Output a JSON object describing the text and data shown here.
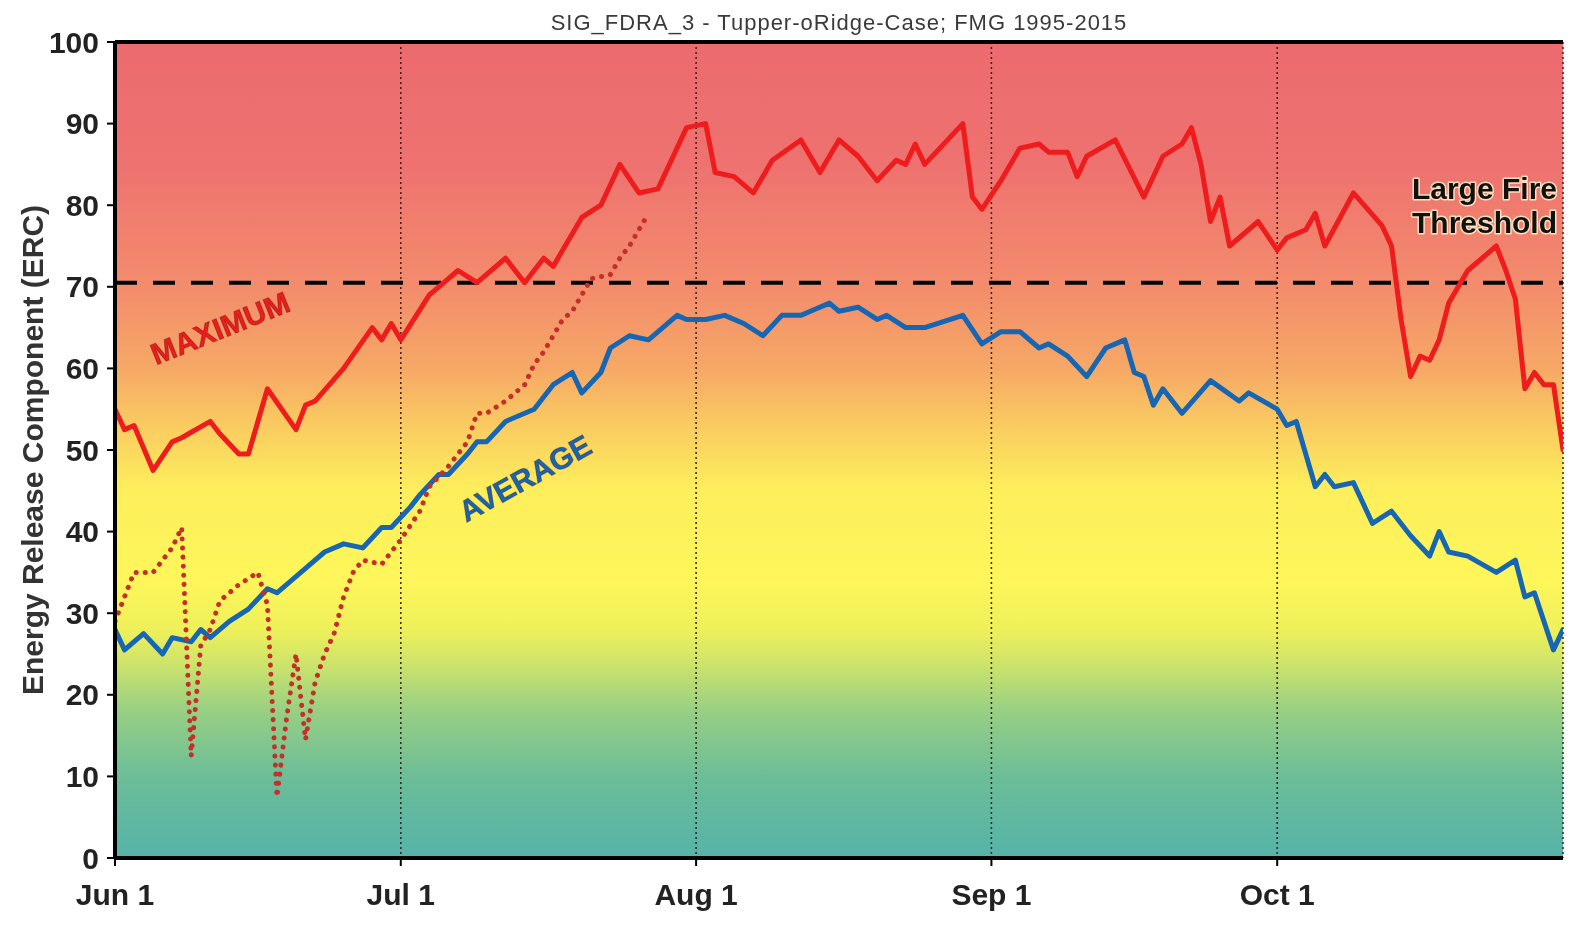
{
  "chart_data": {
    "type": "line",
    "title": "SIG_FDRA_3 - Tupper-oRidge-Case; FMG 1995-2015",
    "ylabel": "Energy Release Component (ERC)",
    "xlim": [
      "--06-01",
      "--10-31"
    ],
    "xticks": [
      {
        "value": "--06-01",
        "label": "Jun 1"
      },
      {
        "value": "--07-01",
        "label": "Jul 1"
      },
      {
        "value": "--08-01",
        "label": "Aug 1"
      },
      {
        "value": "--09-01",
        "label": "Sep 1"
      },
      {
        "value": "--10-01",
        "label": "Oct 1"
      }
    ],
    "ylim": [
      0,
      100
    ],
    "yticks": [
      0,
      10,
      20,
      30,
      40,
      50,
      60,
      70,
      80,
      90,
      100
    ],
    "grid": "x",
    "ref_lines": [
      {
        "axis": "y",
        "value": 70.5,
        "label": "Large Fire Threshold",
        "color": "#000000",
        "line_style": "dashed"
      }
    ],
    "series": [
      {
        "name": "MAXIMUM",
        "color": "#ee1c1c",
        "x": [
          "--06-01",
          "--06-02",
          "--06-03",
          "--06-05",
          "--06-07",
          "--06-08",
          "--06-11",
          "--06-12",
          "--06-14",
          "--06-15",
          "--06-17",
          "--06-20",
          "--06-21",
          "--06-22",
          "--06-25",
          "--06-28",
          "--06-29",
          "--06-30",
          "--07-01",
          "--07-04",
          "--07-05",
          "--07-07",
          "--07-09",
          "--07-12",
          "--07-14",
          "--07-16",
          "--07-17",
          "--07-20",
          "--07-22",
          "--07-24",
          "--07-26",
          "--07-28",
          "--07-30",
          "--07-31",
          "--08-02",
          "--08-03",
          "--08-05",
          "--08-07",
          "--08-09",
          "--08-12",
          "--08-14",
          "--08-16",
          "--08-18",
          "--08-20",
          "--08-22",
          "--08-23",
          "--08-24",
          "--08-25",
          "--08-29",
          "--08-30",
          "--08-31",
          "--09-02",
          "--09-04",
          "--09-06",
          "--09-07",
          "--09-09",
          "--09-10",
          "--09-11",
          "--09-14",
          "--09-17",
          "--09-19",
          "--09-21",
          "--09-22",
          "--09-23",
          "--09-24",
          "--09-25",
          "--09-26",
          "--09-29",
          "--10-01",
          "--10-02",
          "--10-04",
          "--10-05",
          "--10-06",
          "--10-09",
          "--10-12",
          "--10-13",
          "--10-14",
          "--10-15",
          "--10-16",
          "--10-17",
          "--10-18",
          "--10-19",
          "--10-21",
          "--10-24",
          "--10-25",
          "--10-26",
          "--10-27",
          "--10-28",
          "--10-29",
          "--10-30",
          "--10-31"
        ],
        "values": [
          55,
          52.5,
          53,
          47.5,
          51,
          51.5,
          53.5,
          52,
          49.5,
          49.5,
          57.5,
          52.5,
          55.5,
          56,
          60,
          65,
          63.5,
          65.5,
          63.5,
          69,
          70,
          72,
          70.5,
          73.5,
          70.5,
          73.5,
          72.5,
          78.5,
          80,
          85,
          81.5,
          82,
          87,
          89.5,
          90,
          84,
          83.5,
          81.5,
          85.5,
          88,
          84,
          88,
          86,
          83,
          85.5,
          85,
          87.5,
          85,
          90,
          81,
          79.5,
          83,
          87,
          87.5,
          86.5,
          86.5,
          83.5,
          86,
          88,
          81,
          86,
          87.5,
          89.5,
          85,
          78,
          81,
          75,
          78,
          74.5,
          76,
          77,
          79,
          75,
          81.5,
          77.5,
          75,
          66,
          59,
          61.5,
          61,
          63.5,
          68,
          72,
          75,
          72,
          68.5,
          57.5,
          59.5,
          58,
          58,
          50
        ]
      },
      {
        "name": "AVERAGE",
        "color": "#1666b4",
        "x": [
          "--06-01",
          "--06-02",
          "--06-04",
          "--06-06",
          "--06-07",
          "--06-09",
          "--06-10",
          "--06-11",
          "--06-13",
          "--06-15",
          "--06-17",
          "--06-18",
          "--06-21",
          "--06-23",
          "--06-25",
          "--06-27",
          "--06-29",
          "--06-30",
          "--07-02",
          "--07-03",
          "--07-05",
          "--07-06",
          "--07-08",
          "--07-09",
          "--07-10",
          "--07-12",
          "--07-14",
          "--07-15",
          "--07-17",
          "--07-19",
          "--07-20",
          "--07-22",
          "--07-23",
          "--07-25",
          "--07-27",
          "--07-30",
          "--07-31",
          "--08-02",
          "--08-04",
          "--08-06",
          "--08-08",
          "--08-10",
          "--08-11",
          "--08-12",
          "--08-13",
          "--08-15",
          "--08-16",
          "--08-18",
          "--08-20",
          "--08-21",
          "--08-23",
          "--08-25",
          "--08-29",
          "--08-31",
          "--09-02",
          "--09-04",
          "--09-06",
          "--09-07",
          "--09-09",
          "--09-11",
          "--09-13",
          "--09-15",
          "--09-16",
          "--09-17",
          "--09-18",
          "--09-19",
          "--09-21",
          "--09-24",
          "--09-27",
          "--09-28",
          "--10-01",
          "--10-02",
          "--10-03",
          "--10-05",
          "--10-06",
          "--10-07",
          "--10-09",
          "--10-11",
          "--10-13",
          "--10-15",
          "--10-17",
          "--10-18",
          "--10-19",
          "--10-21",
          "--10-24",
          "--10-26",
          "--10-27",
          "--10-28",
          "--10-30",
          "--10-31"
        ],
        "values": [
          28,
          25.5,
          27.5,
          25,
          27,
          26.5,
          28,
          27,
          29,
          30.5,
          33,
          32.5,
          35.5,
          37.5,
          38.5,
          38,
          40.5,
          40.5,
          43,
          44.5,
          47,
          47,
          49.5,
          51,
          51,
          53.5,
          54.5,
          55,
          58,
          59.5,
          57,
          59.5,
          62.5,
          64,
          63.5,
          66.5,
          66,
          66,
          66.5,
          65.5,
          64,
          66.5,
          66.5,
          66.5,
          67,
          68,
          67,
          67.5,
          66,
          66.5,
          65,
          65,
          66.5,
          63,
          64.5,
          64.5,
          62.5,
          63,
          61.5,
          59,
          62.5,
          63.5,
          59.5,
          59,
          55.5,
          57.5,
          54.5,
          58.5,
          56,
          57,
          55,
          53,
          53.5,
          45.5,
          47,
          45.5,
          46,
          41,
          42.5,
          39.5,
          37,
          40,
          37.5,
          37,
          35,
          36.5,
          32,
          32.5,
          25.5,
          28
        ]
      },
      {
        "color": "#c3302a",
        "line_style": "dotted",
        "x": [
          "--06-01",
          "--06-03",
          "--06-05",
          "--06-07",
          "--06-08",
          "--06-09",
          "--06-10",
          "--06-11",
          "--06-12",
          "--06-14",
          "--06-16",
          "--06-17",
          "--06-18",
          "--06-19",
          "--06-20",
          "--06-21",
          "--06-22",
          "--06-23",
          "--06-24",
          "--06-25",
          "--06-26",
          "--06-27",
          "--06-29",
          "--06-30",
          "--07-01",
          "--07-03",
          "--07-04",
          "--07-06",
          "--07-08",
          "--07-09",
          "--07-10",
          "--07-12",
          "--07-14",
          "--07-15",
          "--07-16",
          "--07-18",
          "--07-19",
          "--07-20",
          "--07-21",
          "--07-23",
          "--07-24",
          "--07-25",
          "--07-26",
          "--07-27"
        ],
        "values": [
          29,
          35,
          35,
          38,
          40.5,
          12.5,
          26,
          28,
          31.5,
          33.5,
          35,
          31,
          7.5,
          17,
          25,
          14.5,
          21.5,
          25,
          27.5,
          32,
          35,
          36.5,
          36,
          37.5,
          39,
          42.5,
          45.5,
          48,
          51,
          54.5,
          54.5,
          56,
          58,
          60.5,
          62,
          66,
          67,
          69,
          71,
          71.5,
          73.5,
          75,
          77,
          79
        ]
      }
    ]
  }
}
